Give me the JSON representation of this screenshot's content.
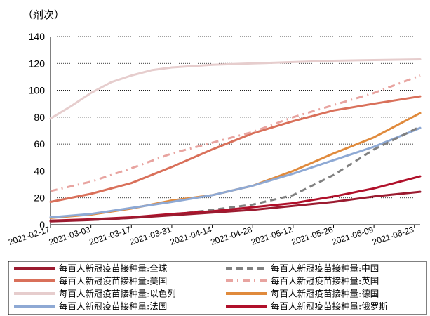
{
  "chart_data": {
    "type": "line",
    "unit_label": "（剂次）",
    "ylim": [
      0,
      140
    ],
    "yticks": [
      0,
      20,
      40,
      60,
      80,
      100,
      120,
      140
    ],
    "xlim": [
      "2021-02-17",
      "2021-06-25"
    ],
    "xticks": [
      "2021-02-17",
      "2021-03-03",
      "2021-03-17",
      "2021-03-31",
      "2021-04-14",
      "2021-04-28",
      "2021-05-12",
      "2021-05-26",
      "2021-06-09",
      "2021-06-23"
    ],
    "grid": "horizontal dotted",
    "legend_position": "bottom",
    "series": [
      {
        "name": "每百人新冠疫苗接种量:全球",
        "color": "#9b1b30",
        "style": "solid",
        "points": [
          [
            "2021-02-17",
            2.5
          ],
          [
            "2021-03-03",
            3.5
          ],
          [
            "2021-03-17",
            5
          ],
          [
            "2021-03-31",
            7
          ],
          [
            "2021-04-14",
            9
          ],
          [
            "2021-04-28",
            11
          ],
          [
            "2021-05-12",
            14
          ],
          [
            "2021-05-26",
            17
          ],
          [
            "2021-06-09",
            21
          ],
          [
            "2021-06-25",
            24.5
          ]
        ]
      },
      {
        "name": "每百人新冠疫苗接种量:中国",
        "color": "#808080",
        "style": "dashed",
        "points": [
          [
            "2021-02-17",
            3
          ],
          [
            "2021-03-03",
            3.5
          ],
          [
            "2021-03-17",
            5
          ],
          [
            "2021-03-31",
            7.5
          ],
          [
            "2021-04-14",
            11
          ],
          [
            "2021-04-28",
            15
          ],
          [
            "2021-05-12",
            22
          ],
          [
            "2021-05-26",
            37
          ],
          [
            "2021-06-09",
            56
          ],
          [
            "2021-06-25",
            73
          ]
        ]
      },
      {
        "name": "每百人新冠疫苗接种量:美国",
        "color": "#d9705a",
        "style": "solid",
        "points": [
          [
            "2021-02-17",
            17
          ],
          [
            "2021-03-03",
            23
          ],
          [
            "2021-03-17",
            31
          ],
          [
            "2021-03-31",
            43
          ],
          [
            "2021-04-14",
            56
          ],
          [
            "2021-04-28",
            68
          ],
          [
            "2021-05-12",
            77
          ],
          [
            "2021-05-26",
            85
          ],
          [
            "2021-06-09",
            90
          ],
          [
            "2021-06-25",
            95.5
          ]
        ]
      },
      {
        "name": "每百人新冠疫苗接种量:英国",
        "color": "#e8a4a0",
        "style": "dashdot",
        "points": [
          [
            "2021-02-17",
            25
          ],
          [
            "2021-03-03",
            32
          ],
          [
            "2021-03-17",
            42
          ],
          [
            "2021-03-31",
            53
          ],
          [
            "2021-04-14",
            61
          ],
          [
            "2021-04-28",
            69
          ],
          [
            "2021-05-12",
            80
          ],
          [
            "2021-05-26",
            89
          ],
          [
            "2021-06-09",
            98
          ],
          [
            "2021-06-25",
            111
          ]
        ]
      },
      {
        "name": "每百人新冠疫苗接种量:以色列",
        "color": "#e6cdcd",
        "style": "solid",
        "points": [
          [
            "2021-02-17",
            79
          ],
          [
            "2021-02-24",
            88
          ],
          [
            "2021-03-03",
            98
          ],
          [
            "2021-03-10",
            106
          ],
          [
            "2021-03-17",
            111
          ],
          [
            "2021-03-24",
            115
          ],
          [
            "2021-03-31",
            117
          ],
          [
            "2021-04-14",
            119
          ],
          [
            "2021-04-28",
            120
          ],
          [
            "2021-05-12",
            121
          ],
          [
            "2021-05-26",
            122
          ],
          [
            "2021-06-09",
            122.5
          ],
          [
            "2021-06-25",
            123
          ]
        ]
      },
      {
        "name": "每百人新冠疫苗接种量:德国",
        "color": "#e08a3c",
        "style": "solid",
        "points": [
          [
            "2021-02-17",
            5
          ],
          [
            "2021-03-03",
            7.5
          ],
          [
            "2021-03-17",
            12
          ],
          [
            "2021-03-31",
            18
          ],
          [
            "2021-04-14",
            22
          ],
          [
            "2021-04-28",
            29
          ],
          [
            "2021-05-12",
            40
          ],
          [
            "2021-05-26",
            53
          ],
          [
            "2021-06-09",
            65
          ],
          [
            "2021-06-25",
            83
          ]
        ]
      },
      {
        "name": "每百人新冠疫苗接种量:法国",
        "color": "#8ea9d4",
        "style": "solid",
        "points": [
          [
            "2021-02-17",
            5.5
          ],
          [
            "2021-03-03",
            8
          ],
          [
            "2021-03-17",
            12.5
          ],
          [
            "2021-03-31",
            17
          ],
          [
            "2021-04-14",
            22
          ],
          [
            "2021-04-28",
            29
          ],
          [
            "2021-05-12",
            38
          ],
          [
            "2021-05-26",
            48
          ],
          [
            "2021-06-09",
            58
          ],
          [
            "2021-06-25",
            72
          ]
        ]
      },
      {
        "name": "每百人新冠疫苗接种量:俄罗斯",
        "color": "#b0102a",
        "style": "solid",
        "points": [
          [
            "2021-02-17",
            3
          ],
          [
            "2021-03-03",
            4
          ],
          [
            "2021-03-17",
            5.5
          ],
          [
            "2021-03-31",
            8
          ],
          [
            "2021-04-14",
            10
          ],
          [
            "2021-04-28",
            13
          ],
          [
            "2021-05-12",
            16
          ],
          [
            "2021-05-26",
            21
          ],
          [
            "2021-06-09",
            27
          ],
          [
            "2021-06-25",
            36
          ]
        ]
      }
    ]
  }
}
